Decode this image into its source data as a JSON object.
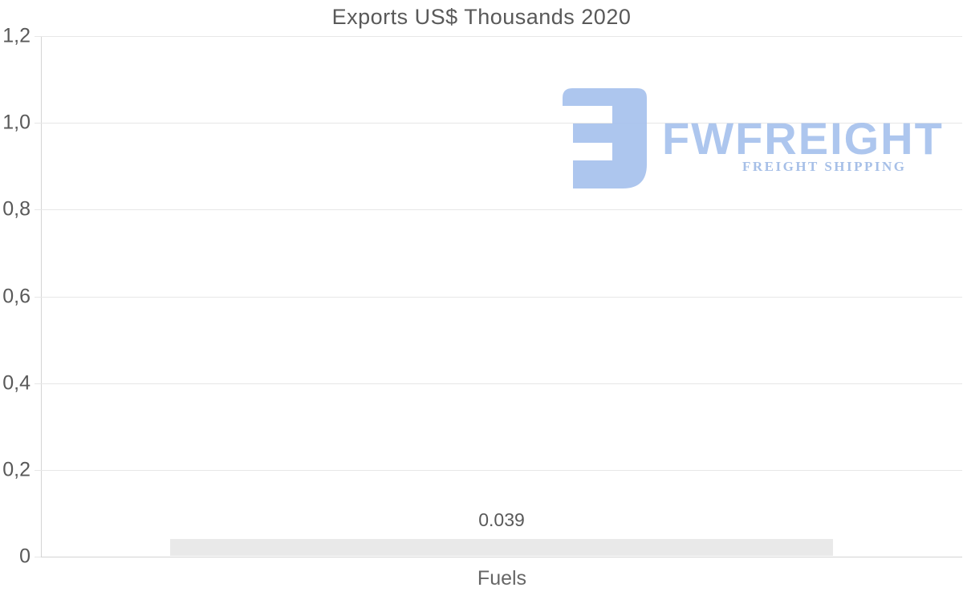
{
  "chart_data": {
    "type": "bar",
    "title": "Exports US$ Thousands 2020",
    "categories": [
      "Fuels"
    ],
    "values": [
      0.039
    ],
    "value_labels": [
      "0.039"
    ],
    "xlabel": "",
    "ylabel": "",
    "ylim": [
      0,
      1.2
    ],
    "ytick_values": [
      0,
      0.2,
      0.4,
      0.6,
      0.8,
      1.0,
      1.2
    ],
    "ytick_labels": [
      "0",
      "0,2",
      "0,4",
      "0,6",
      "0,8",
      "1,0",
      "1,2"
    ],
    "grid": true,
    "legend": false,
    "decimal_separator_axis": "comma",
    "colors": {
      "bar": "#e9e9e9",
      "grid": "#e7e7e7",
      "axis": "#d4d4d4",
      "text": "#595959",
      "category_text": "#666666"
    }
  },
  "watermark": {
    "brand": "FWFREIGHT",
    "tagline": "FREIGHT SHIPPING",
    "color": "#a9c3ee",
    "tagline_color": "#a2bce6"
  }
}
